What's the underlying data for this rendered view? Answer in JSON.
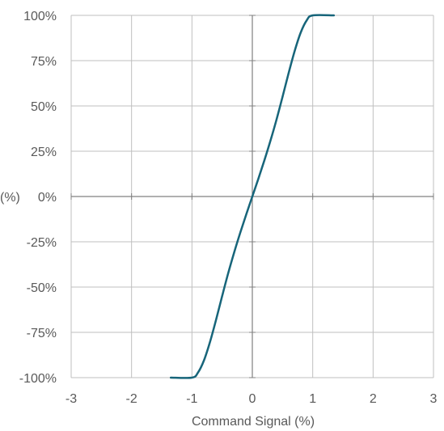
{
  "chart_data": {
    "type": "line",
    "title": "",
    "xlabel": "Command Signal (%)",
    "ylabel": "(%)",
    "xlim": [
      -3,
      3
    ],
    "ylim": [
      -100,
      100
    ],
    "x_ticks": [
      "-3",
      "-2",
      "-1",
      "0",
      "1",
      "2",
      "3"
    ],
    "y_ticks": [
      "-100%",
      "-75%",
      "-50%",
      "-25%",
      "0%",
      "25%",
      "50%",
      "75%",
      "100%"
    ],
    "grid": true,
    "legend": "none",
    "colors": {
      "line": "#17657A",
      "grid": "#BFBFBF",
      "axis": "#808080"
    },
    "series": [
      {
        "x": [
          -1.35,
          -1.0,
          -0.9,
          -0.8,
          -0.7,
          -0.6,
          -0.5,
          -0.4,
          -0.3,
          -0.2,
          -0.1,
          0.0,
          0.1,
          0.2,
          0.3,
          0.4,
          0.5,
          0.6,
          0.7,
          0.8,
          0.9,
          1.0,
          1.35
        ],
        "y": [
          -100,
          -100,
          -97.2,
          -90.4,
          -80.2,
          -68,
          -55,
          -42.4,
          -30.8,
          -20,
          -9.8,
          0,
          9.8,
          20,
          30.8,
          42.4,
          55,
          68,
          80.2,
          90.4,
          97.2,
          100,
          100
        ]
      }
    ]
  }
}
